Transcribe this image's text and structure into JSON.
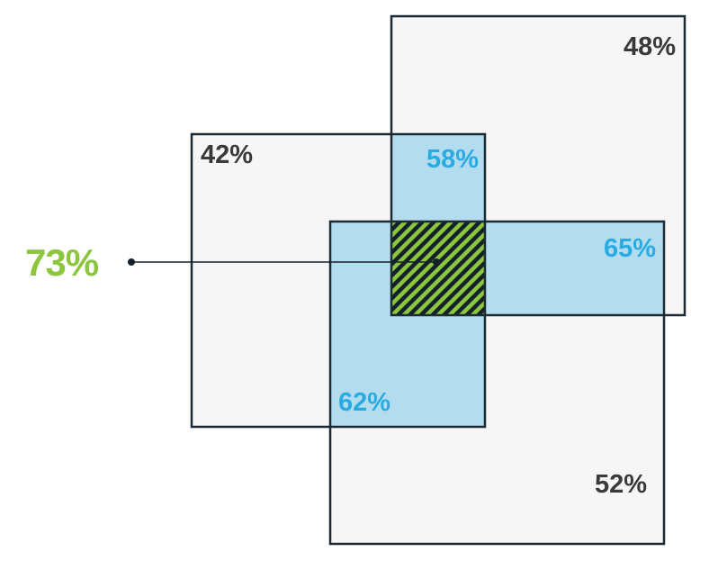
{
  "colors": {
    "box_fill": "#f6f6f6",
    "box_stroke": "#1b2a33",
    "overlap_fill": "#b3dcee",
    "center_green": "#8cc63f",
    "hatch_dark": "#14212b",
    "label_dark": "#3a3a3a",
    "label_blue": "#29abe2",
    "label_green": "#8cc63f"
  },
  "diagram": {
    "sets": [
      {
        "id": "top-right",
        "value": "48%"
      },
      {
        "id": "left",
        "value": "42%"
      },
      {
        "id": "bottom",
        "value": "52%"
      }
    ],
    "overlaps": [
      {
        "sets": [
          "left",
          "top-right"
        ],
        "value": "58%"
      },
      {
        "sets": [
          "top-right",
          "bottom"
        ],
        "value": "65%"
      },
      {
        "sets": [
          "left",
          "bottom"
        ],
        "value": "62%"
      }
    ],
    "center": {
      "value": "73%",
      "pattern": "diagonal-hatch"
    }
  }
}
